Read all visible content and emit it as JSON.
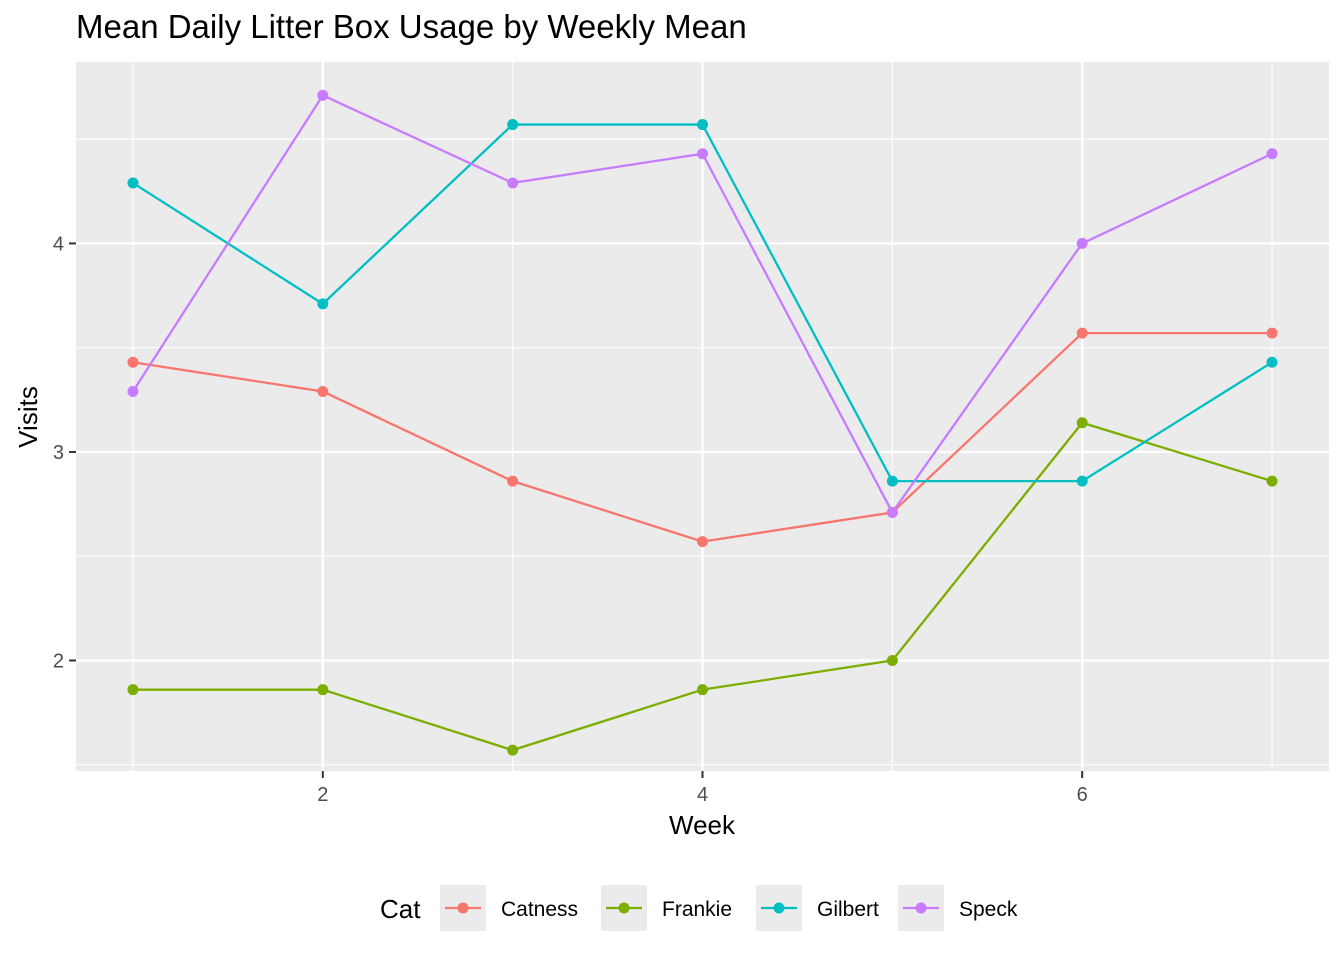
{
  "chart_data": {
    "type": "line",
    "title": "Mean Daily Litter Box Usage by Weekly Mean",
    "xlabel": "Week",
    "ylabel": "Visits",
    "x": [
      1,
      2,
      3,
      4,
      5,
      6,
      7
    ],
    "x_ticks": [
      2,
      4,
      6
    ],
    "y_ticks": [
      2,
      3,
      4
    ],
    "xlim": [
      0.7,
      7.3
    ],
    "ylim": [
      1.47,
      4.87
    ],
    "grid": true,
    "legend_title": "Cat",
    "legend_position": "bottom",
    "series": [
      {
        "name": "Catness",
        "color": "#F8766D",
        "values": [
          3.43,
          3.29,
          2.86,
          2.57,
          2.71,
          3.57,
          3.57
        ]
      },
      {
        "name": "Frankie",
        "color": "#7CAE00",
        "values": [
          1.86,
          1.86,
          1.57,
          1.86,
          2.0,
          3.14,
          2.86
        ]
      },
      {
        "name": "Gilbert",
        "color": "#00BFC4",
        "values": [
          4.29,
          3.71,
          4.57,
          4.57,
          2.86,
          2.86,
          3.43
        ]
      },
      {
        "name": "Speck",
        "color": "#C77CFF",
        "values": [
          3.29,
          4.71,
          4.29,
          4.43,
          2.71,
          4.0,
          4.43
        ]
      }
    ]
  }
}
